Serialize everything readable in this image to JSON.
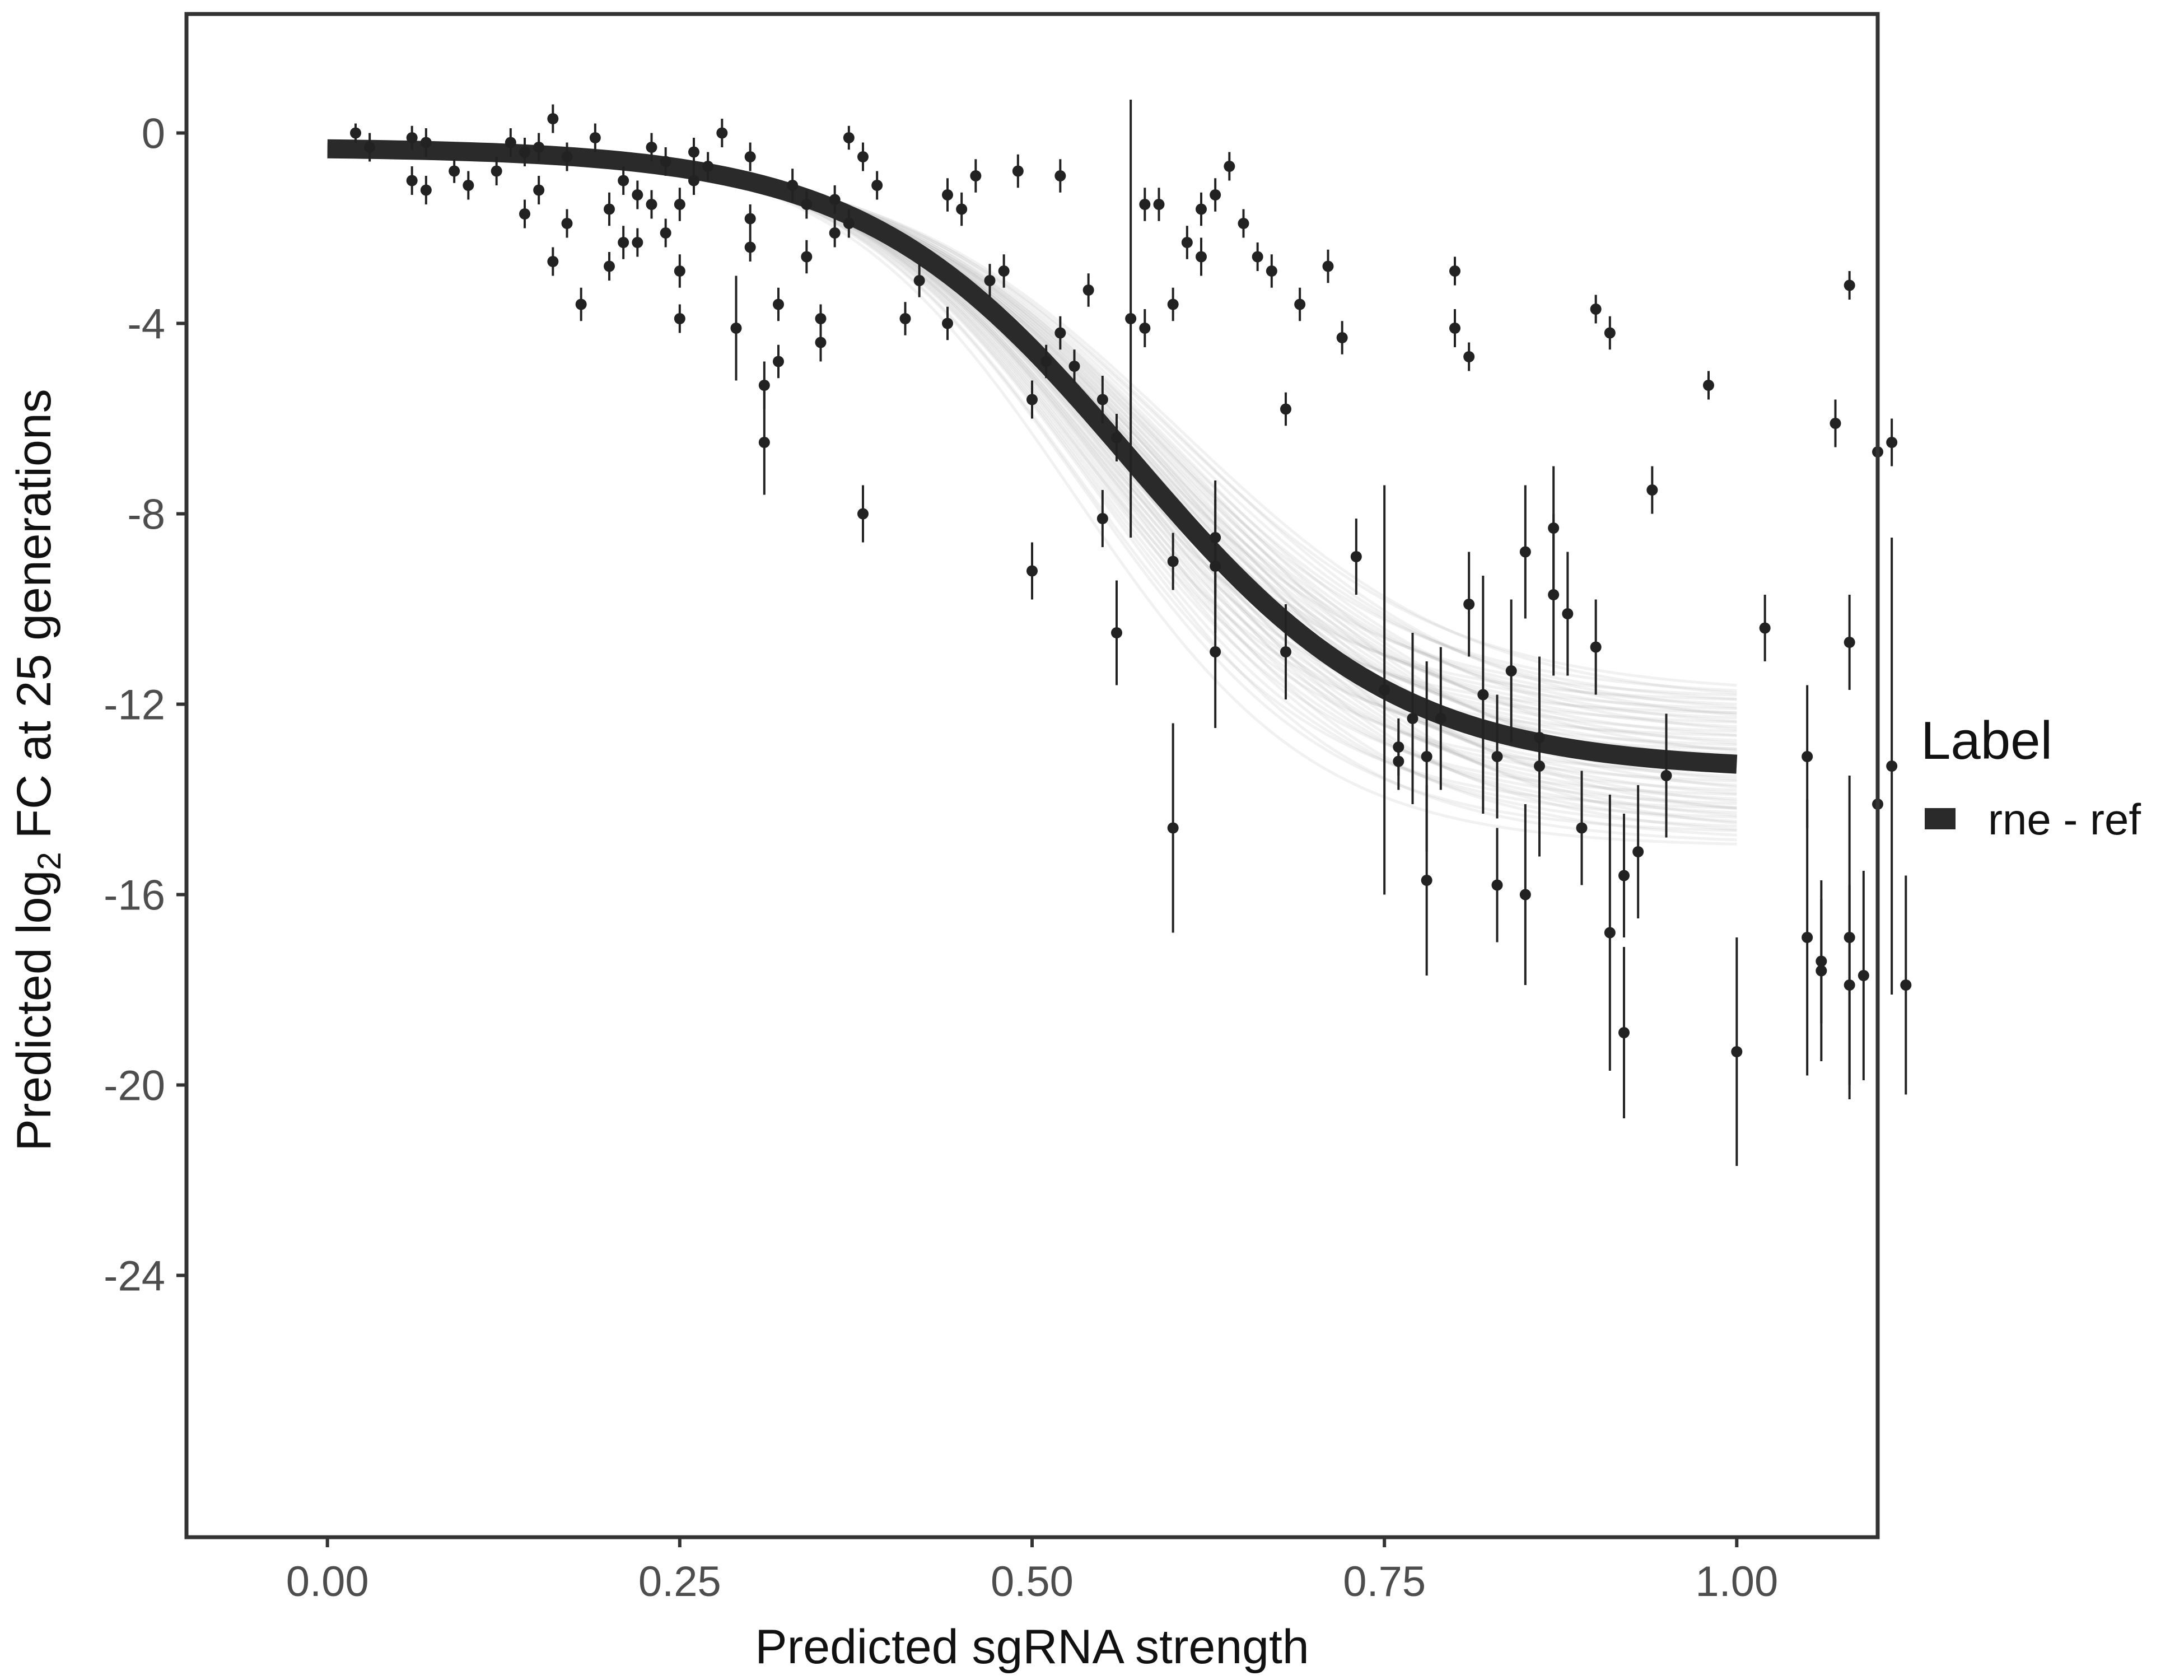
{
  "chart_data": {
    "type": "scatter",
    "xlabel": "Predicted sgRNA strength",
    "ylabel_prefix": "Predicted  log",
    "ylabel_subscript": "2",
    "ylabel_suffix": " FC at 25 generations",
    "xlim": [
      -0.1,
      1.1
    ],
    "ylim": [
      -29.5,
      2.5
    ],
    "x_ticks": [
      0,
      0.25,
      0.5,
      0.75,
      1
    ],
    "x_tick_labels": [
      "0.00",
      "0.25",
      "0.50",
      "0.75",
      "1.00"
    ],
    "y_ticks": [
      0,
      -4,
      -8,
      -12,
      -16,
      -20,
      -24
    ],
    "y_tick_labels": [
      "0",
      "-4",
      "-8",
      "-12",
      "-16",
      "-20",
      "-24"
    ],
    "legend": {
      "title": "Label",
      "entries": [
        {
          "label": "rne - ref",
          "color": "#2a2a2a"
        }
      ]
    },
    "colors": {
      "points": "#222222",
      "fit": "#2a2a2a",
      "band": "#9a9a9a",
      "axis": "#333333"
    },
    "fit_curve": {
      "type": "logistic",
      "lower": -13.4,
      "upper": -0.3,
      "midpoint": 0.57,
      "scale": 0.095,
      "x_range": [
        0,
        1
      ]
    },
    "posterior_band": {
      "type": "logistic-band",
      "lower_range": [
        -15.0,
        -11.8
      ],
      "midpoint_range": [
        0.53,
        0.61
      ]
    },
    "points": [
      [
        0.02,
        0.0,
        0.2
      ],
      [
        0.03,
        -0.3,
        0.3
      ],
      [
        0.06,
        -0.1,
        0.25
      ],
      [
        0.06,
        -1.0,
        0.3
      ],
      [
        0.07,
        -0.2,
        0.3
      ],
      [
        0.07,
        -1.2,
        0.3
      ],
      [
        0.09,
        -0.8,
        0.25
      ],
      [
        0.1,
        -1.1,
        0.3
      ],
      [
        0.12,
        -0.8,
        0.3
      ],
      [
        0.13,
        -0.2,
        0.3
      ],
      [
        0.14,
        -0.4,
        0.3
      ],
      [
        0.14,
        -1.7,
        0.3
      ],
      [
        0.15,
        -0.3,
        0.3
      ],
      [
        0.15,
        -1.2,
        0.3
      ],
      [
        0.16,
        0.3,
        0.3
      ],
      [
        0.16,
        -2.7,
        0.3
      ],
      [
        0.17,
        -0.5,
        0.3
      ],
      [
        0.17,
        -1.9,
        0.3
      ],
      [
        0.18,
        -3.6,
        0.35
      ],
      [
        0.19,
        -0.1,
        0.3
      ],
      [
        0.2,
        -1.6,
        0.35
      ],
      [
        0.2,
        -2.8,
        0.3
      ],
      [
        0.21,
        -1.0,
        0.3
      ],
      [
        0.21,
        -2.3,
        0.35
      ],
      [
        0.22,
        -1.3,
        0.3
      ],
      [
        0.22,
        -2.3,
        0.3
      ],
      [
        0.23,
        -1.5,
        0.3
      ],
      [
        0.23,
        -0.3,
        0.3
      ],
      [
        0.24,
        -2.1,
        0.3
      ],
      [
        0.24,
        -0.6,
        0.3
      ],
      [
        0.25,
        -1.5,
        0.35
      ],
      [
        0.25,
        -2.9,
        0.35
      ],
      [
        0.25,
        -3.9,
        0.3
      ],
      [
        0.26,
        -0.4,
        0.3
      ],
      [
        0.26,
        -1.0,
        0.3
      ],
      [
        0.27,
        -0.7,
        0.3
      ],
      [
        0.28,
        0.0,
        0.3
      ],
      [
        0.29,
        -4.1,
        1.1
      ],
      [
        0.3,
        -0.5,
        0.3
      ],
      [
        0.3,
        -1.8,
        0.3
      ],
      [
        0.3,
        -2.4,
        0.3
      ],
      [
        0.31,
        -5.3,
        0.5
      ],
      [
        0.31,
        -6.5,
        1.1
      ],
      [
        0.32,
        -3.6,
        0.35
      ],
      [
        0.32,
        -4.8,
        0.35
      ],
      [
        0.33,
        -1.1,
        0.35
      ],
      [
        0.34,
        -2.6,
        0.35
      ],
      [
        0.34,
        -1.5,
        0.3
      ],
      [
        0.35,
        -3.9,
        0.3
      ],
      [
        0.35,
        -4.4,
        0.4
      ],
      [
        0.36,
        -1.4,
        0.3
      ],
      [
        0.36,
        -2.1,
        0.3
      ],
      [
        0.37,
        -0.1,
        0.25
      ],
      [
        0.37,
        -1.9,
        0.3
      ],
      [
        0.38,
        -8.0,
        0.6
      ],
      [
        0.38,
        -0.5,
        0.3
      ],
      [
        0.39,
        -1.1,
        0.3
      ],
      [
        0.41,
        -3.9,
        0.35
      ],
      [
        0.42,
        -3.1,
        0.35
      ],
      [
        0.44,
        -4.0,
        0.35
      ],
      [
        0.44,
        -1.3,
        0.35
      ],
      [
        0.45,
        -1.6,
        0.35
      ],
      [
        0.46,
        -0.9,
        0.35
      ],
      [
        0.47,
        -3.1,
        0.35
      ],
      [
        0.48,
        -2.9,
        0.35
      ],
      [
        0.49,
        -0.8,
        0.35
      ],
      [
        0.5,
        -5.6,
        0.4
      ],
      [
        0.5,
        -9.2,
        0.6
      ],
      [
        0.51,
        -4.8,
        0.35
      ],
      [
        0.52,
        -0.9,
        0.35
      ],
      [
        0.52,
        -4.2,
        0.35
      ],
      [
        0.53,
        -4.9,
        0.35
      ],
      [
        0.54,
        -3.3,
        0.35
      ],
      [
        0.55,
        -5.6,
        0.5
      ],
      [
        0.55,
        -8.1,
        0.6
      ],
      [
        0.56,
        -6.4,
        0.5
      ],
      [
        0.56,
        -10.5,
        1.1
      ],
      [
        0.57,
        -3.9,
        4.6
      ],
      [
        0.58,
        -4.1,
        0.4
      ],
      [
        0.58,
        -1.5,
        0.35
      ],
      [
        0.59,
        -1.5,
        0.35
      ],
      [
        0.6,
        -3.6,
        0.35
      ],
      [
        0.6,
        -14.6,
        2.2
      ],
      [
        0.6,
        -9.0,
        0.6
      ],
      [
        0.61,
        -2.3,
        0.35
      ],
      [
        0.62,
        -2.6,
        0.4
      ],
      [
        0.62,
        -1.6,
        0.35
      ],
      [
        0.63,
        -1.3,
        0.35
      ],
      [
        0.63,
        -9.1,
        1.4
      ],
      [
        0.63,
        -10.9,
        1.6
      ],
      [
        0.63,
        -8.5,
        1.2
      ],
      [
        0.64,
        -0.7,
        0.3
      ],
      [
        0.65,
        -1.9,
        0.3
      ],
      [
        0.66,
        -2.6,
        0.3
      ],
      [
        0.67,
        -2.9,
        0.35
      ],
      [
        0.68,
        -5.8,
        0.35
      ],
      [
        0.68,
        -10.9,
        1.0
      ],
      [
        0.69,
        -3.6,
        0.35
      ],
      [
        0.71,
        -2.8,
        0.35
      ],
      [
        0.72,
        -4.3,
        0.35
      ],
      [
        0.73,
        -8.9,
        0.8
      ],
      [
        0.75,
        -11.7,
        4.3
      ],
      [
        0.76,
        -12.9,
        0.6
      ],
      [
        0.76,
        -13.2,
        0.6
      ],
      [
        0.77,
        -12.3,
        1.8
      ],
      [
        0.78,
        -15.7,
        2.0
      ],
      [
        0.78,
        -13.1,
        2.0
      ],
      [
        0.79,
        -12.3,
        1.5
      ],
      [
        0.8,
        -4.1,
        0.4
      ],
      [
        0.8,
        -2.9,
        0.3
      ],
      [
        0.81,
        -4.7,
        0.3
      ],
      [
        0.81,
        -9.9,
        1.1
      ],
      [
        0.82,
        -11.8,
        2.5
      ],
      [
        0.83,
        -13.1,
        1.3
      ],
      [
        0.83,
        -15.8,
        1.2
      ],
      [
        0.84,
        -11.3,
        1.5
      ],
      [
        0.85,
        -8.8,
        1.4
      ],
      [
        0.85,
        -16.0,
        1.9
      ],
      [
        0.86,
        -12.7,
        1.7
      ],
      [
        0.86,
        -13.3,
        1.9
      ],
      [
        0.87,
        -9.7,
        1.7
      ],
      [
        0.87,
        -8.3,
        1.3
      ],
      [
        0.88,
        -10.1,
        1.3
      ],
      [
        0.89,
        -14.6,
        1.2
      ],
      [
        0.9,
        -3.7,
        0.3
      ],
      [
        0.9,
        -10.8,
        1.0
      ],
      [
        0.91,
        -16.8,
        2.9
      ],
      [
        0.91,
        -4.2,
        0.35
      ],
      [
        0.92,
        -18.9,
        1.8
      ],
      [
        0.92,
        -15.6,
        1.3
      ],
      [
        0.93,
        -15.1,
        1.4
      ],
      [
        0.94,
        -7.5,
        0.5
      ],
      [
        0.95,
        -13.5,
        1.3
      ],
      [
        0.98,
        -5.3,
        0.3
      ],
      [
        1.0,
        -19.3,
        2.4
      ],
      [
        1.02,
        -10.4,
        0.7
      ],
      [
        1.05,
        -16.9,
        2.9
      ],
      [
        1.05,
        -13.1,
        1.5
      ],
      [
        1.06,
        -17.4,
        1.3
      ],
      [
        1.06,
        -17.6,
        1.9
      ],
      [
        1.07,
        -6.1,
        0.5
      ],
      [
        1.08,
        -10.7,
        1.0
      ],
      [
        1.08,
        -16.9,
        3.4
      ],
      [
        1.08,
        -17.9,
        2.1
      ],
      [
        1.08,
        -3.2,
        0.3
      ],
      [
        1.09,
        -17.7,
        2.2
      ],
      [
        1.1,
        -6.7,
        0.4
      ],
      [
        1.1,
        -14.1,
        1.9
      ],
      [
        1.11,
        -6.5,
        0.5
      ],
      [
        1.11,
        -13.3,
        4.8
      ],
      [
        1.12,
        -17.9,
        2.3
      ]
    ]
  }
}
